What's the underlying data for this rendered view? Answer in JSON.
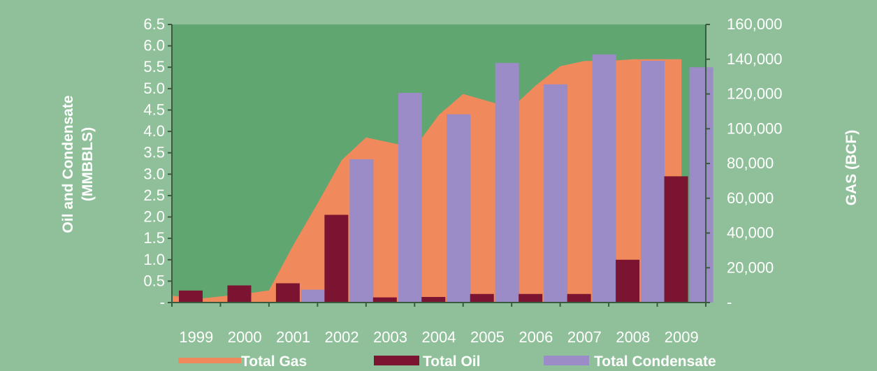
{
  "chart_data": {
    "type": "bar",
    "categories": [
      "1999",
      "2000",
      "2001",
      "2002",
      "2003",
      "2004",
      "2005",
      "2006",
      "2007",
      "2008",
      "2009"
    ],
    "y_left": {
      "label_line1": "Oil and Condensate",
      "label_line2": "(MMBBLS)",
      "ticks": [
        "-",
        "0.5",
        "1.0",
        "1.5",
        "2.0",
        "2.5",
        "3.0",
        "3.5",
        "4.0",
        "4.5",
        "5.0",
        "5.5",
        "6.0",
        "6.5"
      ],
      "ylim": [
        0,
        6.5
      ]
    },
    "y_right": {
      "label": "GAS (BCF)",
      "ticks": [
        "-",
        "20,000",
        "40,000",
        "60,000",
        "80,000",
        "100,000",
        "120,000",
        "140,000",
        "160,000"
      ],
      "ylim": [
        0,
        160000
      ]
    },
    "series": [
      {
        "name": "Total Gas",
        "kind": "area",
        "axis": "right",
        "color": "#f08a5d",
        "x": [
          1999.0,
          1999.5,
          2000.0,
          2000.5,
          2001.0,
          2001.5,
          2002.0,
          2002.5,
          2003.0,
          2003.5,
          2004.0,
          2004.5,
          2005.0,
          2005.5,
          2006.0,
          2006.5,
          2007.0,
          2007.5,
          2008.0,
          2008.5,
          2009.0,
          2009.5
        ],
        "values": [
          4000,
          2000,
          3500,
          5000,
          7000,
          33000,
          57000,
          82000,
          95000,
          92000,
          89000,
          108000,
          120000,
          116000,
          112000,
          125000,
          136000,
          139000,
          139000,
          140000,
          140000,
          140000
        ]
      },
      {
        "name": "Total Oil",
        "kind": "bar",
        "axis": "left",
        "color": "#7b1430",
        "values": [
          0.28,
          0.4,
          0.45,
          2.05,
          0.12,
          0.13,
          0.2,
          0.2,
          0.2,
          1.0,
          2.95
        ]
      },
      {
        "name": "Total Condensate",
        "kind": "bar",
        "axis": "left",
        "color": "#9b8bc6",
        "values": [
          0,
          0,
          0.3,
          3.35,
          4.9,
          4.4,
          5.6,
          5.1,
          5.8,
          5.65,
          5.5
        ]
      }
    ],
    "legend_position": "bottom",
    "plot_background": "#5fa670",
    "grid": false
  }
}
